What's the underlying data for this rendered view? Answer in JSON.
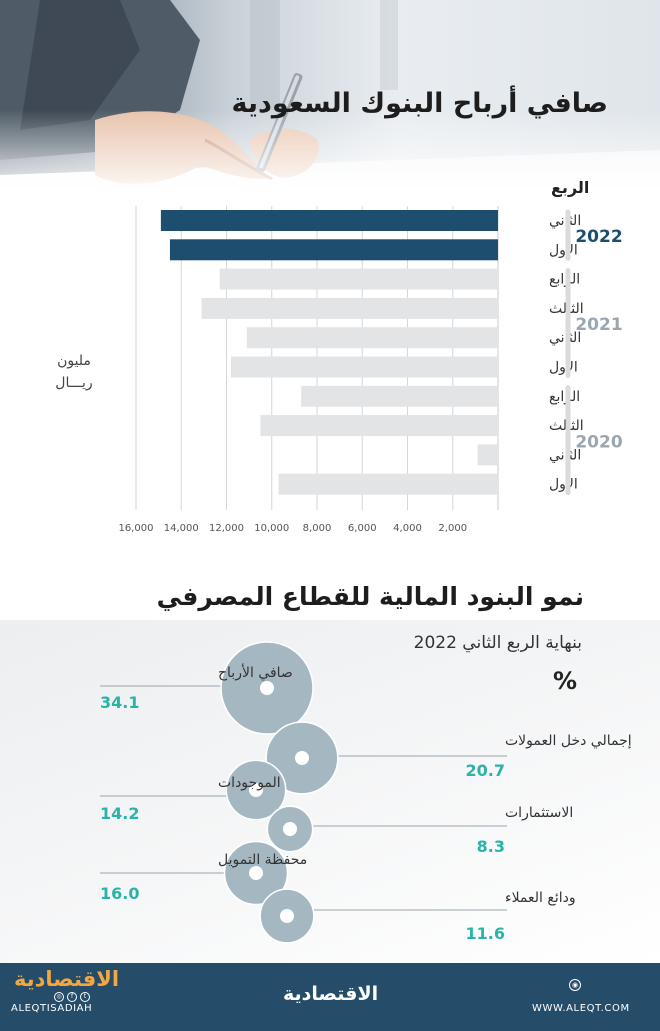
{
  "header": {
    "title": "صافي أرباح البنوك السعودية"
  },
  "chart_data": {
    "type": "bar",
    "quarter_header": "الربع",
    "unit_label_line1": "مليون",
    "unit_label_line2": "ريـــال",
    "xlim": [
      0,
      16000
    ],
    "xticks": [
      2000,
      4000,
      6000,
      8000,
      10000,
      12000,
      14000,
      16000
    ],
    "xtick_labels": [
      "2,000",
      "4,000",
      "6,000",
      "8,000",
      "10,000",
      "12,000",
      "14,000",
      "16,000"
    ],
    "highlight_color": "#1d4e6f",
    "base_color": "#e3e4e6",
    "groups": [
      {
        "year": "2022",
        "quarters": [
          {
            "label": "الثاني",
            "value": 14900,
            "highlight": true
          },
          {
            "label": "الأول",
            "value": 14500,
            "highlight": true
          }
        ]
      },
      {
        "year": "2021",
        "quarters": [
          {
            "label": "الرابع",
            "value": 12300,
            "highlight": false
          },
          {
            "label": "الثالث",
            "value": 13100,
            "highlight": false
          },
          {
            "label": "الثاني",
            "value": 11100,
            "highlight": false
          },
          {
            "label": "الأول",
            "value": 11800,
            "highlight": false
          }
        ]
      },
      {
        "year": "2020",
        "quarters": [
          {
            "label": "الرابع",
            "value": 8700,
            "highlight": false
          },
          {
            "label": "الثالث",
            "value": 10500,
            "highlight": false
          },
          {
            "label": "الثاني",
            "value": 900,
            "highlight": false
          },
          {
            "label": "الأول",
            "value": 9700,
            "highlight": false
          }
        ]
      }
    ]
  },
  "growth": {
    "title": "نمو البنود المالية للقطاع المصرفي",
    "subtitle": "بنهاية الربع الثاني 2022",
    "unit": "%",
    "circle_color": "#a5b8c2",
    "value_color": "#2bb3a8",
    "items": [
      {
        "label": "صافي الأرباح",
        "value": "34.1",
        "side": "left"
      },
      {
        "label": "إجمالي دخل العمولات",
        "value": "20.7",
        "side": "right"
      },
      {
        "label": "الموجودات",
        "value": "14.2",
        "side": "left"
      },
      {
        "label": "الاستثمارات",
        "value": "8.3",
        "side": "right"
      },
      {
        "label": "محفظة التمويل",
        "value": "16.0",
        "side": "left"
      },
      {
        "label": "ودائع العملاء",
        "value": "11.6",
        "side": "right"
      }
    ]
  },
  "footer": {
    "brand": "الاقتصادية",
    "handle": "ALEQTISADIAH",
    "website": "WWW.ALEQT.COM"
  }
}
